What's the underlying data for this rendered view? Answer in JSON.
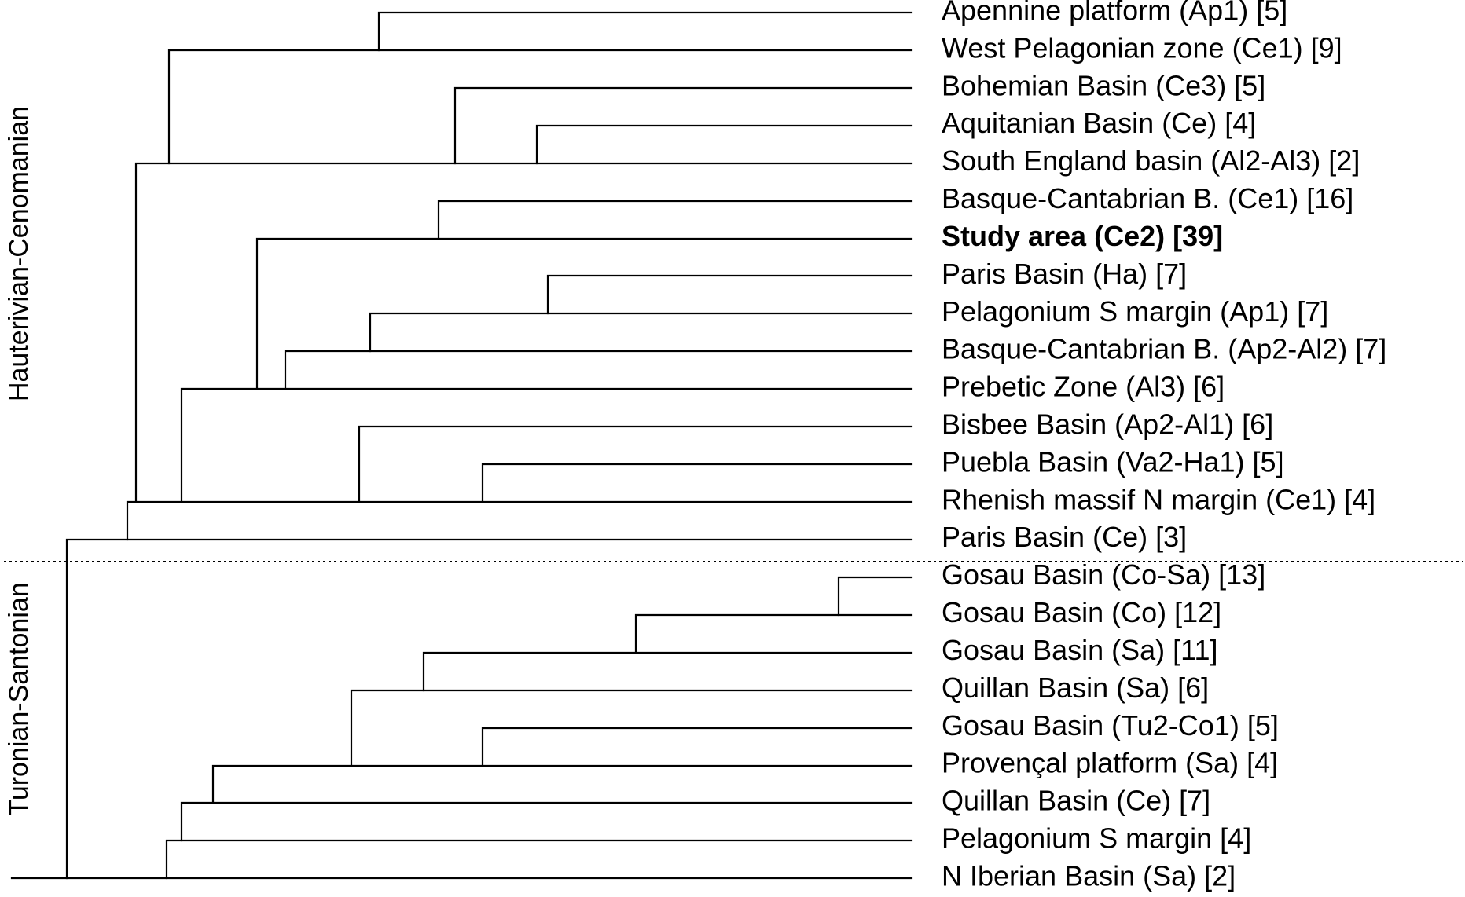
{
  "groups": [
    {
      "name": "Hauterivian-Cenomanian"
    },
    {
      "name": "Turonian-Santonian"
    }
  ],
  "taxa": [
    {
      "label": "Apennine platform (Ap1) [5]"
    },
    {
      "label": "West Pelagonian zone (Ce1) [9]"
    },
    {
      "label": "Bohemian Basin (Ce3) [5]"
    },
    {
      "label": "Aquitanian Basin (Ce) [4]"
    },
    {
      "label": "South England basin (Al2-Al3) [2]"
    },
    {
      "label": "Basque-Cantabrian B. (Ce1) [16]"
    },
    {
      "label": "Study area (Ce2) [39]",
      "bold": true
    },
    {
      "label": "Paris Basin (Ha) [7]"
    },
    {
      "label": "Pelagonium S margin (Ap1) [7]"
    },
    {
      "label": "Basque-Cantabrian B. (Ap2-Al2) [7]"
    },
    {
      "label": "Prebetic Zone (Al3) [6]"
    },
    {
      "label": "Bisbee Basin (Ap2-Al1) [6]"
    },
    {
      "label": "Puebla Basin (Va2-Ha1) [5]"
    },
    {
      "label": "Rhenish massif N margin (Ce1) [4]"
    },
    {
      "label": "Paris Basin (Ce) [3]"
    },
    {
      "label": "Gosau Basin (Co-Sa) [13]"
    },
    {
      "label": "Gosau Basin (Co) [12]"
    },
    {
      "label": "Gosau Basin (Sa) [11]"
    },
    {
      "label": "Quillan Basin (Sa) [6]"
    },
    {
      "label": "Gosau Basin (Tu2-Co1) [5]"
    },
    {
      "label": "Provençal platform (Sa) [4]"
    },
    {
      "label": "Quillan Basin (Ce) [7]"
    },
    {
      "label": "Pelagonium S margin [4]"
    },
    {
      "label": "N Iberian Basin (Sa) [2]"
    }
  ]
}
